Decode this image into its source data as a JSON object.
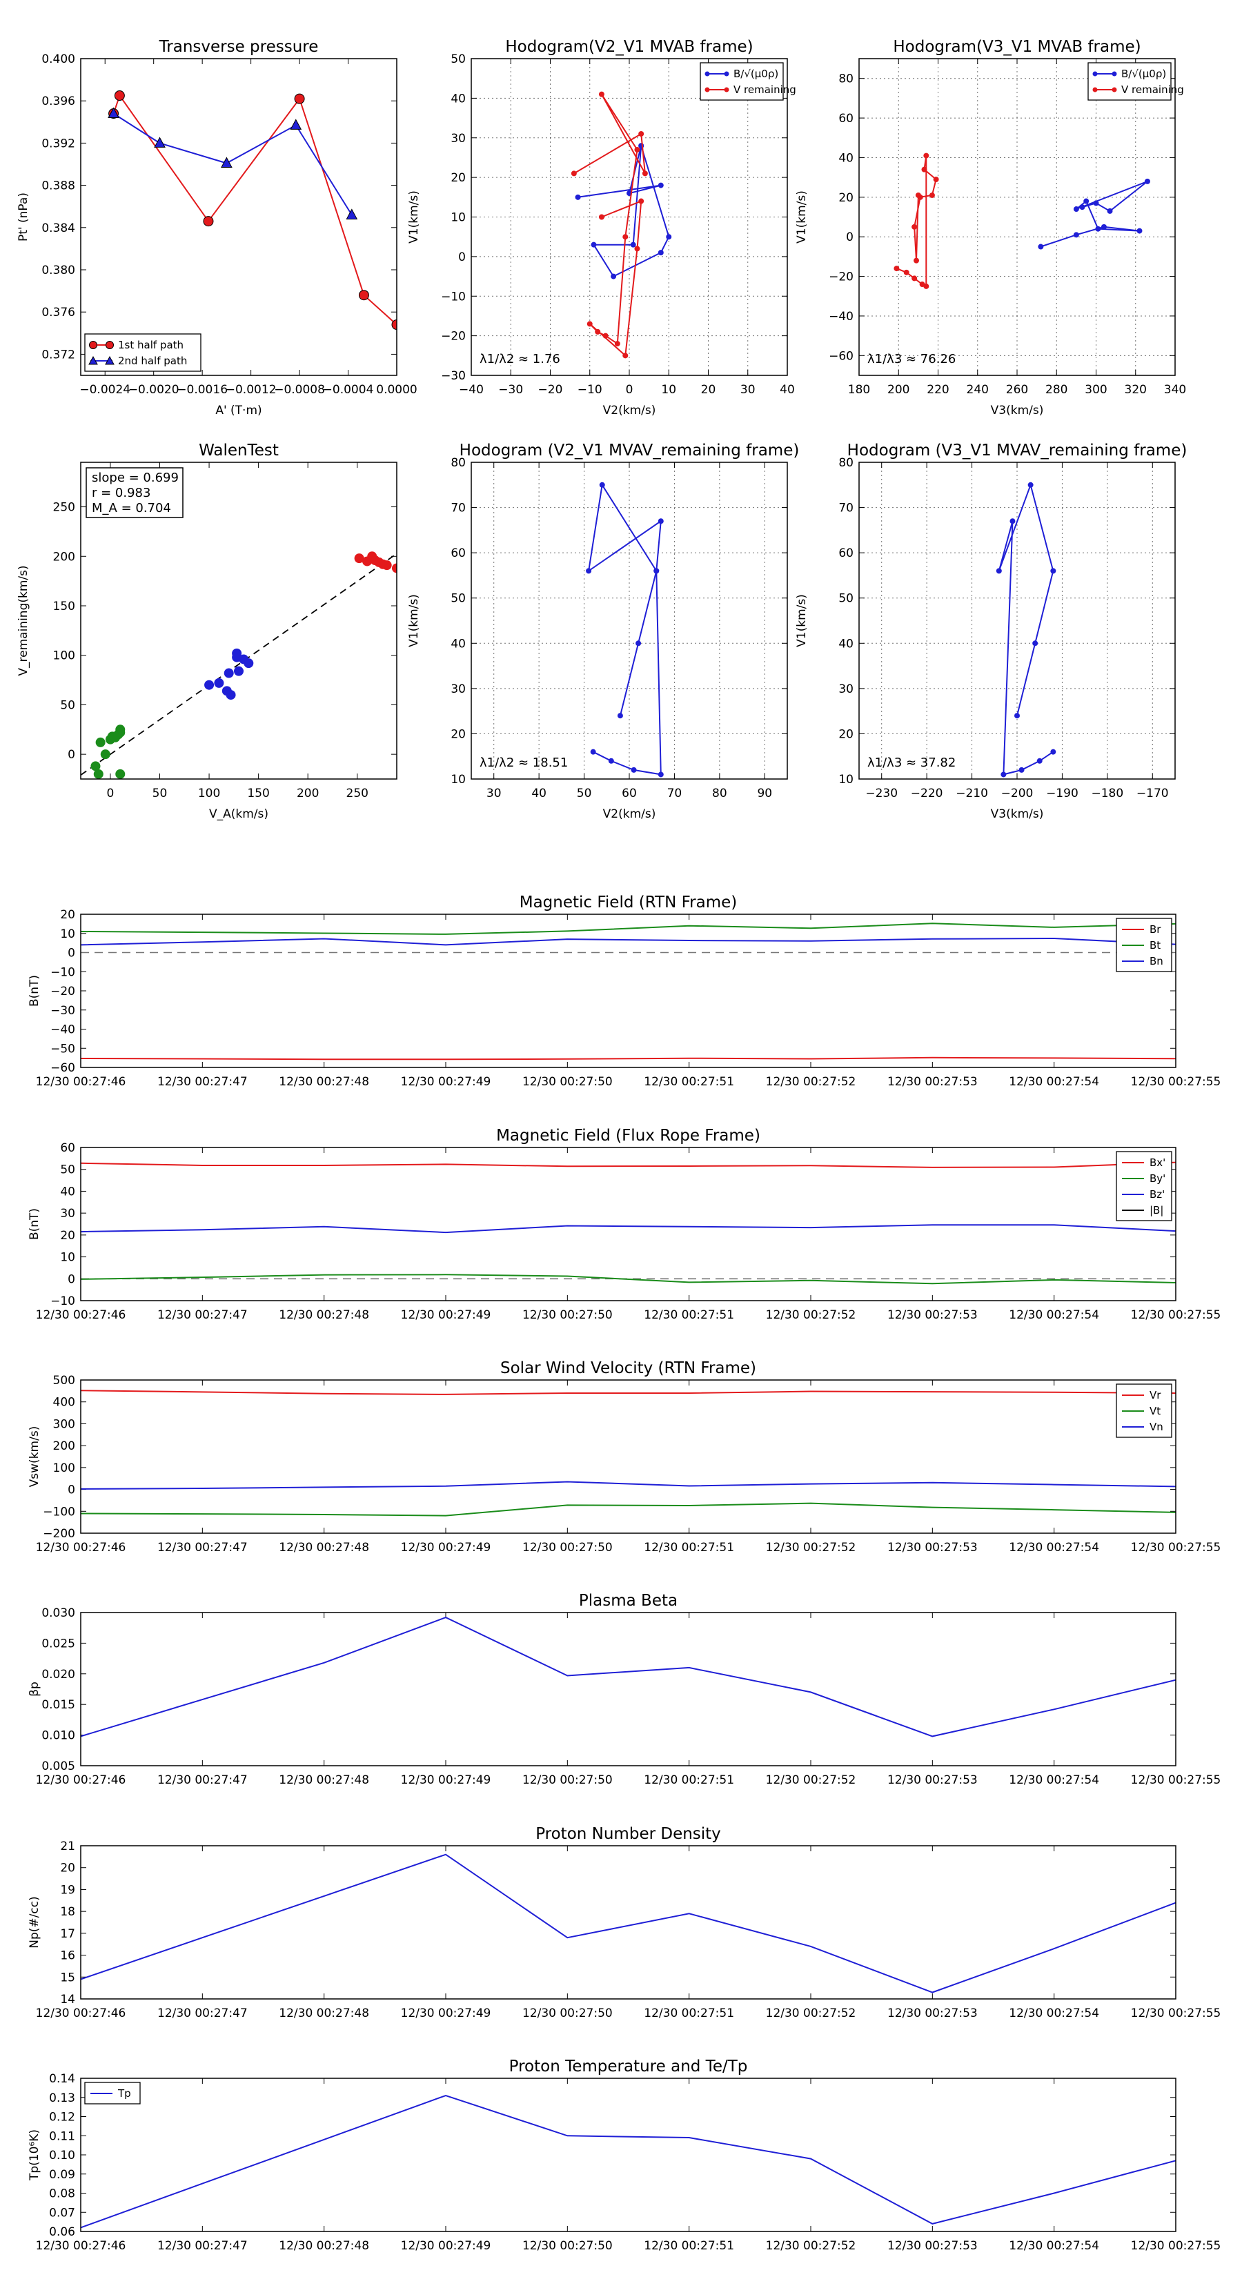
{
  "colors": {
    "red": "#e31a1c",
    "green": "#1a8c1a",
    "blue": "#1f1fd6",
    "black": "#000000",
    "dash": "#777777"
  },
  "timeLabels": [
    "12/30 00:27:46",
    "12/30 00:27:47",
    "12/30 00:27:48",
    "12/30 00:27:49",
    "12/30 00:27:50",
    "12/30 00:27:51",
    "12/30 00:27:52",
    "12/30 00:27:53",
    "12/30 00:27:54",
    "12/30 00:27:55"
  ],
  "chart_data": [
    {
      "id": "transverse",
      "type": "line",
      "title": "Transverse pressure",
      "xlabel": "A' (T·m)",
      "ylabel": "Pt' (nPa)",
      "xlim": [
        -0.0026,
        0.0
      ],
      "ylim": [
        0.37,
        0.4
      ],
      "xticks": [
        -0.0024,
        -0.002,
        -0.0016,
        -0.0012,
        -0.0008,
        -0.0004,
        0.0
      ],
      "xtickLabels": [
        "−0.0024",
        "−0.0020",
        "−0.0016",
        "−0.0012",
        "−0.0008",
        "−0.0004",
        "0.0000"
      ],
      "yticks": [
        0.372,
        0.376,
        0.38,
        0.384,
        0.388,
        0.392,
        0.396,
        0.4
      ],
      "ytickLabels": [
        "0.372",
        "0.376",
        "0.380",
        "0.384",
        "0.388",
        "0.392",
        "0.396",
        "0.400"
      ],
      "legend": "lower-left",
      "series": [
        {
          "name": "1st half path",
          "color": "red",
          "marker": "circle",
          "x": [
            -0.00233,
            -0.00228,
            -0.00155,
            -0.0008,
            -0.00027,
            0.0
          ],
          "y": [
            0.3948,
            0.3965,
            0.3846,
            0.3962,
            0.3776,
            0.3748
          ]
        },
        {
          "name": "2nd half path",
          "color": "blue",
          "marker": "triangle",
          "x": [
            -0.00233,
            -0.00195,
            -0.0014,
            -0.00083,
            -0.00037
          ],
          "y": [
            0.3948,
            0.392,
            0.3901,
            0.3937,
            0.3852
          ]
        }
      ]
    },
    {
      "id": "hodo1",
      "type": "scatter",
      "title": "Hodogram(V2_V1 MVAB frame)",
      "xlabel": "V2(km/s)",
      "ylabel": "V1(km/s)",
      "xlim": [
        -40,
        40
      ],
      "ylim": [
        -30,
        50
      ],
      "xticks": [
        -40,
        -30,
        -20,
        -10,
        0,
        10,
        20,
        30,
        40
      ],
      "yticks": [
        -30,
        -20,
        -10,
        0,
        10,
        20,
        30,
        40,
        50
      ],
      "grid": true,
      "legend": "top-right",
      "annotation": "λ1/λ2 ≈ 1.76",
      "series": [
        {
          "name": "B/√(μ0ρ)",
          "color": "blue",
          "x": [
            -13,
            8,
            0,
            3,
            10,
            8,
            -4,
            -9,
            1,
            3
          ],
          "y": [
            15,
            18,
            16,
            28,
            5,
            1,
            -5,
            3,
            3,
            28
          ]
        },
        {
          "name": "V remaining",
          "color": "red",
          "x": [
            -14,
            3,
            4,
            -7,
            2,
            -1,
            -3,
            -6,
            -8,
            -10,
            -1,
            2,
            3,
            -7
          ],
          "y": [
            21,
            31,
            21,
            41,
            27,
            5,
            -22,
            -20,
            -19,
            -17,
            -25,
            2,
            14,
            10
          ]
        }
      ]
    },
    {
      "id": "hodo2",
      "type": "scatter",
      "title": "Hodogram(V3_V1 MVAB frame)",
      "xlabel": "V3(km/s)",
      "ylabel": "V1(km/s)",
      "xlim": [
        180,
        340
      ],
      "ylim": [
        -70,
        90
      ],
      "xticks": [
        180,
        200,
        220,
        240,
        260,
        280,
        300,
        320,
        340
      ],
      "yticks": [
        -60,
        -40,
        -20,
        0,
        20,
        40,
        60,
        80
      ],
      "grid": true,
      "legend": "top-right",
      "annotation": "λ1/λ3 ≈ 76.26",
      "series": [
        {
          "name": "B/√(μ0ρ)",
          "color": "blue",
          "x": [
            272,
            290,
            304,
            322,
            301,
            295,
            290,
            326,
            307,
            300,
            293
          ],
          "y": [
            -5,
            1,
            5,
            3,
            4,
            18,
            14,
            28,
            13,
            17,
            15
          ]
        },
        {
          "name": "V remaining",
          "color": "red",
          "x": [
            199,
            204,
            208,
            212,
            214,
            214,
            213,
            219,
            217,
            211,
            208,
            209,
            210
          ],
          "y": [
            -16,
            -18,
            -21,
            -24,
            -25,
            41,
            34,
            29,
            21,
            20,
            5,
            -12,
            21
          ]
        }
      ]
    },
    {
      "id": "walen",
      "type": "scatter",
      "title": "WalenTest",
      "xlabel": "V_A(km/s)",
      "ylabel": "V_remaining(km/s)",
      "xlim": [
        -30,
        290
      ],
      "ylim": [
        -25,
        295
      ],
      "xticks": [
        0,
        50,
        100,
        150,
        200,
        250
      ],
      "yticks": [
        0,
        50,
        100,
        150,
        200,
        250
      ],
      "textbox": [
        "slope = 0.699",
        "r = 0.983",
        "M_A = 0.704"
      ],
      "fitSlope": 0.699,
      "series": [
        {
          "name": "green",
          "color": "green",
          "x": [
            -15,
            -12,
            -10,
            -5,
            0,
            2,
            5,
            8,
            10,
            10,
            10
          ],
          "y": [
            -12,
            -20,
            12,
            0,
            15,
            18,
            17,
            20,
            22,
            25,
            -20
          ]
        },
        {
          "name": "blue",
          "color": "blue",
          "x": [
            100,
            110,
            118,
            120,
            122,
            128,
            128,
            130,
            135,
            140
          ],
          "y": [
            70,
            72,
            64,
            82,
            60,
            98,
            102,
            84,
            96,
            92
          ]
        },
        {
          "name": "red",
          "color": "red",
          "x": [
            252,
            260,
            265,
            268,
            272,
            276,
            280,
            290
          ],
          "y": [
            198,
            195,
            200,
            196,
            194,
            192,
            191,
            188
          ]
        }
      ]
    },
    {
      "id": "hodo3",
      "type": "scatter",
      "title": "Hodogram (V2_V1 MVAV_remaining frame)",
      "xlabel": "V2(km/s)",
      "ylabel": "V1(km/s)",
      "xlim": [
        25,
        95
      ],
      "ylim": [
        10,
        80
      ],
      "xticks": [
        30,
        40,
        50,
        60,
        70,
        80,
        90
      ],
      "yticks": [
        10,
        20,
        30,
        40,
        50,
        60,
        70,
        80
      ],
      "grid": true,
      "annotation": "λ1/λ2 ≈ 18.51",
      "series": [
        {
          "name": "V",
          "color": "blue",
          "x": [
            52,
            56,
            61,
            67,
            66,
            54,
            51,
            67,
            66,
            62,
            58
          ],
          "y": [
            16,
            14,
            12,
            11,
            56,
            75,
            56,
            67,
            56,
            40,
            24
          ]
        }
      ]
    },
    {
      "id": "hodo4",
      "type": "scatter",
      "title": "Hodogram (V3_V1 MVAV_remaining frame)",
      "xlabel": "V3(km/s)",
      "ylabel": "V1(km/s)",
      "xlim": [
        -235,
        -165
      ],
      "ylim": [
        10,
        80
      ],
      "xticks": [
        -230,
        -220,
        -210,
        -200,
        -190,
        -180,
        -170
      ],
      "yticks": [
        10,
        20,
        30,
        40,
        50,
        60,
        70,
        80
      ],
      "grid": true,
      "annotation": "λ1/λ3 ≈ 37.82",
      "series": [
        {
          "name": "V",
          "color": "blue",
          "x": [
            -192,
            -195,
            -199,
            -203,
            -201,
            -204,
            -197,
            -192,
            -196,
            -200
          ],
          "y": [
            16,
            14,
            12,
            11,
            67,
            56,
            75,
            56,
            40,
            24
          ]
        }
      ]
    },
    {
      "id": "magRTN",
      "type": "line",
      "title": "Magnetic Field (RTN Frame)",
      "ylabel": "B(nT)",
      "ylim": [
        -60,
        20
      ],
      "yticks": [
        -60,
        -50,
        -40,
        -30,
        -20,
        -10,
        0,
        10,
        20
      ],
      "zeroLine": true,
      "legend": "top-right",
      "series": [
        {
          "name": "Br",
          "color": "red",
          "values": [
            -55.3,
            -55.5,
            -55.8,
            -55.8,
            -55.6,
            -55.2,
            -55.5,
            -54.9,
            -55.1,
            -55.4
          ]
        },
        {
          "name": "Bt",
          "color": "green",
          "values": [
            11.0,
            10.6,
            10.1,
            9.6,
            11.2,
            14.0,
            12.7,
            15.2,
            13.2,
            15.0
          ]
        },
        {
          "name": "Bn",
          "color": "blue",
          "values": [
            4.0,
            5.5,
            7.2,
            4.0,
            7.0,
            6.3,
            6.0,
            7.1,
            7.4,
            4.3
          ]
        }
      ]
    },
    {
      "id": "magFR",
      "type": "line",
      "title": "Magnetic Field (Flux Rope Frame)",
      "ylabel": "B(nT)",
      "ylim": [
        -10,
        60
      ],
      "yticks": [
        -10,
        0,
        10,
        20,
        30,
        40,
        50,
        60
      ],
      "zeroLine": true,
      "legend": "top-right",
      "series": [
        {
          "name": "Bx'",
          "color": "red",
          "values": [
            52.8,
            51.8,
            51.8,
            52.3,
            51.4,
            51.5,
            51.7,
            50.9,
            51.0,
            53.2
          ]
        },
        {
          "name": "By'",
          "color": "green",
          "values": [
            -0.2,
            0.7,
            1.8,
            1.9,
            1.2,
            -1.6,
            -0.8,
            -2.2,
            -0.5,
            -1.8
          ]
        },
        {
          "name": "Bz'",
          "color": "blue",
          "values": [
            21.5,
            22.4,
            23.8,
            21.2,
            24.2,
            23.8,
            23.4,
            24.6,
            24.6,
            21.8
          ]
        },
        {
          "name": "|B|",
          "color": "black",
          "values": []
        }
      ]
    },
    {
      "id": "velRTN",
      "type": "line",
      "title": "Solar Wind Velocity (RTN Frame)",
      "ylabel": "Vsw(km/s)",
      "ylim": [
        -200,
        500
      ],
      "yticks": [
        -200,
        -100,
        0,
        100,
        200,
        300,
        400,
        500
      ],
      "legend": "top-right",
      "series": [
        {
          "name": "Vr",
          "color": "red",
          "values": [
            452,
            445,
            438,
            434,
            440,
            440,
            448,
            446,
            444,
            440
          ]
        },
        {
          "name": "Vt",
          "color": "green",
          "values": [
            -110,
            -112,
            -115,
            -120,
            -72,
            -74,
            -63,
            -82,
            -93,
            -105
          ]
        },
        {
          "name": "Vn",
          "color": "blue",
          "values": [
            2,
            5,
            10,
            15,
            35,
            16,
            25,
            31,
            22,
            13
          ]
        }
      ]
    },
    {
      "id": "beta",
      "type": "line",
      "title": "Plasma Beta",
      "ylabel": "βp",
      "ylim": [
        0.005,
        0.03
      ],
      "yticks": [
        0.005,
        0.01,
        0.015,
        0.02,
        0.025,
        0.03
      ],
      "ytickLabels": [
        "0.005",
        "0.010",
        "0.015",
        "0.020",
        "0.025",
        "0.030"
      ],
      "series": [
        {
          "name": "beta",
          "color": "blue",
          "values": [
            0.0098,
            0.0158,
            0.0218,
            0.0292,
            0.0197,
            0.021,
            0.017,
            0.0098,
            0.0142,
            0.019
          ]
        }
      ]
    },
    {
      "id": "density",
      "type": "line",
      "title": "Proton Number Density",
      "ylabel": "Np(#/cc)",
      "ylim": [
        14,
        21
      ],
      "yticks": [
        14,
        15,
        16,
        17,
        18,
        19,
        20,
        21
      ],
      "series": [
        {
          "name": "Np",
          "color": "blue",
          "values": [
            14.9,
            16.8,
            18.7,
            20.6,
            16.8,
            17.9,
            16.4,
            14.3,
            16.3,
            18.4
          ]
        }
      ]
    },
    {
      "id": "temperature",
      "type": "line",
      "title": "Proton Temperature and Te/Tp",
      "ylabel": "Tp(10⁶K)",
      "ylim": [
        0.06,
        0.14
      ],
      "yticks": [
        0.06,
        0.07,
        0.08,
        0.09,
        0.1,
        0.11,
        0.12,
        0.13,
        0.14
      ],
      "ytickLabels": [
        "0.06",
        "0.07",
        "0.08",
        "0.09",
        "0.10",
        "0.11",
        "0.12",
        "0.13",
        "0.14"
      ],
      "legend": "top-left",
      "series": [
        {
          "name": "Tp",
          "color": "blue",
          "values": [
            0.062,
            0.085,
            0.108,
            0.131,
            0.11,
            0.109,
            0.098,
            0.064,
            0.08,
            0.097
          ]
        }
      ]
    }
  ]
}
